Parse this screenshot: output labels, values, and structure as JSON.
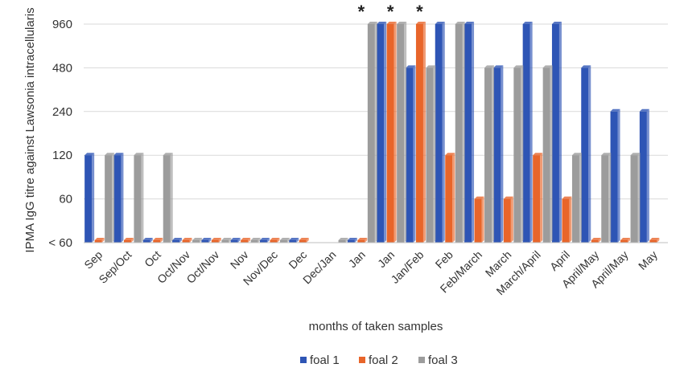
{
  "chart_data": {
    "type": "bar",
    "title": "",
    "ylabel": "IPMA IgG titre against Lawsonia  intracellularis",
    "xlabel": "months  of taken samples",
    "yscale": "log2",
    "y_ticks": [
      {
        "value": 30,
        "label": "< 60"
      },
      {
        "value": 60,
        "label": "60"
      },
      {
        "value": 120,
        "label": "120"
      },
      {
        "value": 240,
        "label": "240"
      },
      {
        "value": 480,
        "label": "480"
      },
      {
        "value": 960,
        "label": "960"
      }
    ],
    "ylim": [
      30,
      960
    ],
    "grid": true,
    "legend_position": "bottom",
    "categories": [
      "Sep",
      "Sep/Oct",
      "Oct",
      "Oct/Nov",
      "Oct/Nov",
      "Nov",
      "Nov/Dec",
      "Dec",
      "Dec/Jan",
      "Jan",
      "Jan",
      "Jan/Feb",
      "Feb",
      "Feb/March",
      "March",
      "March/April",
      "April",
      "April/May",
      "April/May",
      "May"
    ],
    "series": [
      {
        "name": "foal 1",
        "color": "#2E55B5",
        "values": [
          120,
          120,
          30,
          30,
          30,
          30,
          30,
          30,
          null,
          30,
          960,
          480,
          960,
          960,
          480,
          960,
          960,
          480,
          240,
          240
        ]
      },
      {
        "name": "foal 2",
        "color": "#E8652A",
        "values": [
          30,
          30,
          30,
          30,
          30,
          30,
          30,
          30,
          null,
          30,
          960,
          960,
          120,
          60,
          60,
          120,
          60,
          30,
          30,
          30
        ]
      },
      {
        "name": "foal 3",
        "color": "#9C9C9C",
        "values": [
          120,
          120,
          120,
          30,
          30,
          30,
          30,
          null,
          30,
          960,
          960,
          480,
          960,
          480,
          480,
          480,
          120,
          120,
          120,
          null
        ]
      }
    ],
    "annotations": [
      {
        "text": "*",
        "category_index": 9
      },
      {
        "text": "*",
        "category_index": 10
      },
      {
        "text": "*",
        "category_index": 11
      }
    ]
  }
}
